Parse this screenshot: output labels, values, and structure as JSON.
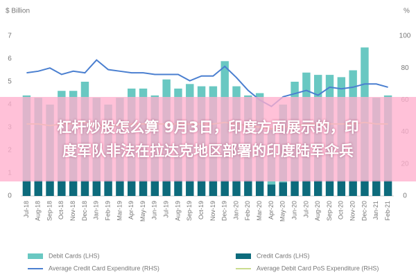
{
  "chart_data": {
    "type": "combo",
    "y_label": "$ Billion",
    "y2_label": "%",
    "categories": [
      "Jul-18",
      "Aug-18",
      "Sep-18",
      "Oct-18",
      "Nov-18",
      "Dec-18",
      "Jan-19",
      "Feb-19",
      "Mar-19",
      "Apr-19",
      "May-19",
      "Jun-19",
      "Jul-19",
      "Aug-19",
      "Sep-19",
      "Oct-19",
      "Nov-19",
      "Dec-19",
      "Jan-20",
      "Feb-20",
      "Mar-20",
      "Apr-20",
      "May-20",
      "Jun-20",
      "Jul-20",
      "Aug-20",
      "Sep-20",
      "Oct-20",
      "Nov-20",
      "Dec-20",
      "Jan-21",
      "Feb-21"
    ],
    "series": [
      {
        "name": "Credit Cards (LHS)",
        "kind": "bar",
        "color": "#0d6b7c",
        "values": [
          0.7,
          0.7,
          0.7,
          0.7,
          0.7,
          0.7,
          0.7,
          0.7,
          0.7,
          0.7,
          0.7,
          0.7,
          0.7,
          0.7,
          0.7,
          0.7,
          0.7,
          0.7,
          0.7,
          0.7,
          0.7,
          0.5,
          0.6,
          0.7,
          0.7,
          0.7,
          0.7,
          0.7,
          0.7,
          0.7,
          0.7,
          0.7
        ]
      },
      {
        "name": "Debit Cards (LHS)",
        "kind": "bar",
        "color": "#69c8c2",
        "values": [
          3.7,
          3.6,
          3.3,
          3.9,
          3.9,
          4.3,
          3.6,
          3.3,
          3.6,
          4.0,
          4.0,
          3.7,
          4.4,
          4.0,
          4.2,
          4.1,
          4.1,
          5.2,
          4.1,
          3.7,
          3.8,
          2.4,
          3.4,
          4.3,
          4.7,
          4.6,
          4.6,
          4.5,
          4.8,
          5.8,
          3.6,
          3.7
        ]
      },
      {
        "name": "Average Credit Card Expenditure (RHS)",
        "kind": "line",
        "axis": "y2",
        "color": "#4a7fd0",
        "values": [
          77,
          78,
          80,
          76,
          78,
          77,
          85,
          79,
          78,
          77,
          77,
          76,
          76,
          76,
          72,
          75,
          75,
          81,
          74,
          66,
          60,
          56,
          62,
          64,
          66,
          63,
          68,
          67,
          68,
          70,
          70,
          68
        ]
      },
      {
        "name": "Average Debit Card PoS Expenditure (RHS)",
        "kind": "line",
        "axis": "y2",
        "color": "#c9dc8e",
        "values": [
          45,
          45,
          44,
          45,
          45,
          46,
          44,
          44,
          44,
          45,
          45,
          45,
          45,
          45,
          45,
          45,
          45,
          46,
          45,
          44,
          43,
          42,
          43,
          44,
          45,
          45,
          45,
          45,
          45,
          46,
          45,
          45
        ]
      }
    ],
    "ylim": [
      0,
      7
    ],
    "yticks": [
      0,
      1,
      2,
      3,
      4,
      5,
      6,
      7
    ],
    "y2lim": [
      0,
      100
    ],
    "y2ticks": [
      0,
      20,
      40,
      60,
      80,
      100
    ]
  },
  "overlay": {
    "lines": [
      "杠杆炒股怎么算 9月3日，印度方面展示的，印",
      "度军队非法在拉达克地区部署的印度陆军伞兵"
    ]
  }
}
